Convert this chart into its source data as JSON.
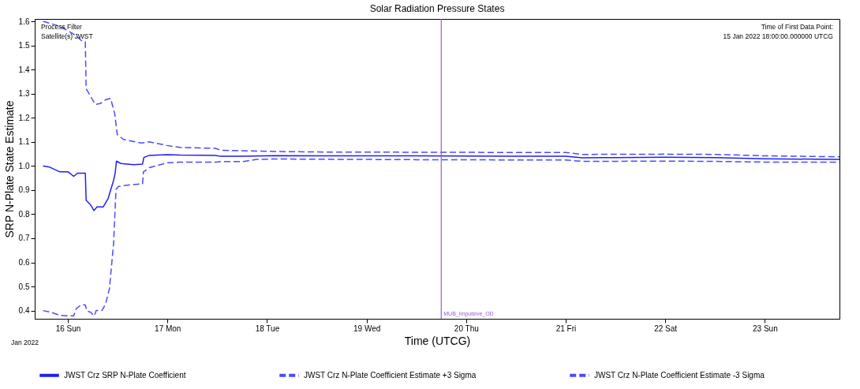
{
  "chart_data": {
    "type": "line",
    "title": "Solar Radiation Pressure States",
    "xlabel": "Time (UTCG)",
    "ylabel": "SRP N-Plate State Estimate",
    "xlim": [
      "2022-01-15T16:00",
      "2022-01-23T18:00"
    ],
    "ylim": [
      0.366,
      1.61
    ],
    "xticks": [
      {
        "value": "2022-01-16",
        "label": "16 Sun"
      },
      {
        "value": "2022-01-17",
        "label": "17 Mon"
      },
      {
        "value": "2022-01-18",
        "label": "18 Tue"
      },
      {
        "value": "2022-01-19",
        "label": "19 Wed"
      },
      {
        "value": "2022-01-20",
        "label": "20 Thu"
      },
      {
        "value": "2022-01-21",
        "label": "21 Fri"
      },
      {
        "value": "2022-01-22",
        "label": "22 Sat"
      },
      {
        "value": "2022-01-23",
        "label": "23 Sun"
      }
    ],
    "yticks": [
      0.4,
      0.5,
      0.6,
      0.7,
      0.8,
      0.9,
      {
        "value": 1,
        "label": "1.0"
      },
      1.1,
      1.2,
      1.3,
      1.4,
      1.5,
      1.6
    ],
    "grid": false,
    "legend": "bottom",
    "marker": "none",
    "annotations": [
      "Process Filter",
      "Satellite(s) JWST",
      "Time of First Data Point:",
      "15 Jan 2022 18:00:00.000000 UTCG",
      "Jan 2022"
    ],
    "ref_lines": [
      {
        "axis": "x",
        "value": "2022-01-19T18:00",
        "label": "MUB_Impulsive_OD",
        "color": "#9b59d6"
      }
    ],
    "series": [
      {
        "name": "JWST Crz SRP N-Plate Coefficient",
        "color": "#1f1ff5",
        "line_style": "solid",
        "x": [
          "2022-01-15T18:00",
          "2022-01-15T19:36",
          "2022-01-15T22:00",
          "2022-01-16T00:00",
          "2022-01-16T01:24",
          "2022-01-16T02:18",
          "2022-01-16T04:12",
          "2022-01-16T04:24",
          "2022-01-16T05:24",
          "2022-01-16T06:18",
          "2022-01-16T07:00",
          "2022-01-16T08:30",
          "2022-01-16T09:42",
          "2022-01-16T11:00",
          "2022-01-16T11:24",
          "2022-01-16T11:42",
          "2022-01-16T12:48",
          "2022-01-16T15:54",
          "2022-01-16T18:00",
          "2022-01-16T18:18",
          "2022-01-16T19:36",
          "2022-01-16T23:54",
          "2022-01-17T03:00",
          "2022-01-17T11:36",
          "2022-01-17T12:48",
          "2022-01-17T18:18",
          "2022-01-18T02:00",
          "2022-01-18T12:00",
          "2022-01-19T12:00",
          "2022-01-20T12:00",
          "2022-01-21T00:00",
          "2022-01-21T04:00",
          "2022-01-21T12:00",
          "2022-01-22T00:00",
          "2022-01-22T12:00",
          "2022-01-23T00:00",
          "2022-01-23T12:00",
          "2022-01-23T18:00"
        ],
        "values": [
          1.0,
          0.995,
          0.976,
          0.976,
          0.957,
          0.97,
          0.97,
          0.857,
          0.84,
          0.815,
          0.83,
          0.83,
          0.865,
          0.94,
          0.97,
          1.02,
          1.01,
          1.005,
          1.008,
          1.035,
          1.044,
          1.047,
          1.045,
          1.044,
          1.04,
          1.04,
          1.043,
          1.042,
          1.042,
          1.04,
          1.04,
          1.034,
          1.035,
          1.036,
          1.035,
          1.03,
          1.028,
          1.027
        ]
      },
      {
        "name": "JWST Crz N-Plate Coefficient Estimate +3 Sigma",
        "color": "#4a4aff",
        "line_style": "dashed",
        "x": [
          "2022-01-15T18:00",
          "2022-01-15T22:00",
          "2022-01-16T01:06",
          "2022-01-16T03:18",
          "2022-01-16T04:12",
          "2022-01-16T04:24",
          "2022-01-16T05:06",
          "2022-01-16T06:36",
          "2022-01-16T07:54",
          "2022-01-16T09:06",
          "2022-01-16T10:18",
          "2022-01-16T11:18",
          "2022-01-16T11:54",
          "2022-01-16T13:24",
          "2022-01-16T17:42",
          "2022-01-16T19:36",
          "2022-01-16T23:54",
          "2022-01-17T03:00",
          "2022-01-17T11:36",
          "2022-01-17T12:48",
          "2022-01-18T02:00",
          "2022-01-18T12:00",
          "2022-01-19T12:00",
          "2022-01-20T12:00",
          "2022-01-21T00:00",
          "2022-01-21T04:00",
          "2022-01-22T00:00",
          "2022-01-22T12:00",
          "2022-01-23T00:00",
          "2022-01-23T18:00"
        ],
        "values": [
          1.6,
          1.58,
          1.55,
          1.52,
          1.515,
          1.32,
          1.3,
          1.255,
          1.26,
          1.275,
          1.28,
          1.215,
          1.13,
          1.11,
          1.095,
          1.1,
          1.085,
          1.077,
          1.073,
          1.065,
          1.06,
          1.058,
          1.057,
          1.056,
          1.056,
          1.048,
          1.049,
          1.048,
          1.042,
          1.038
        ]
      },
      {
        "name": "JWST Crz N-Plate Coefficient Estimate -3 Sigma",
        "color": "#4a4aff",
        "line_style": "dashed",
        "x": [
          "2022-01-15T18:00",
          "2022-01-15T20:00",
          "2022-01-15T22:00",
          "2022-01-16T00:00",
          "2022-01-16T01:24",
          "2022-01-16T02:00",
          "2022-01-16T03:18",
          "2022-01-16T04:12",
          "2022-01-16T04:36",
          "2022-01-16T05:30",
          "2022-01-16T06:24",
          "2022-01-16T06:48",
          "2022-01-16T08:12",
          "2022-01-16T09:06",
          "2022-01-16T10:00",
          "2022-01-16T11:00",
          "2022-01-16T11:36",
          "2022-01-16T12:12",
          "2022-01-16T14:36",
          "2022-01-16T18:00",
          "2022-01-16T18:12",
          "2022-01-16T19:36",
          "2022-01-16T23:54",
          "2022-01-17T03:00",
          "2022-01-17T11:36",
          "2022-01-17T12:48",
          "2022-01-17T18:18",
          "2022-01-17T21:24",
          "2022-01-18T02:00",
          "2022-01-18T12:00",
          "2022-01-19T12:00",
          "2022-01-20T12:00",
          "2022-01-21T00:00",
          "2022-01-21T04:00",
          "2022-01-22T00:00",
          "2022-01-22T12:00",
          "2022-01-23T00:00",
          "2022-01-23T18:00"
        ],
        "values": [
          0.4,
          0.393,
          0.38,
          0.378,
          0.378,
          0.408,
          0.425,
          0.423,
          0.398,
          0.393,
          0.378,
          0.4,
          0.4,
          0.428,
          0.49,
          0.676,
          0.903,
          0.915,
          0.921,
          0.926,
          0.975,
          0.993,
          1.013,
          1.016,
          1.016,
          1.018,
          1.018,
          1.027,
          1.029,
          1.028,
          1.026,
          1.025,
          1.025,
          1.019,
          1.02,
          1.019,
          1.016,
          1.016
        ]
      }
    ]
  }
}
